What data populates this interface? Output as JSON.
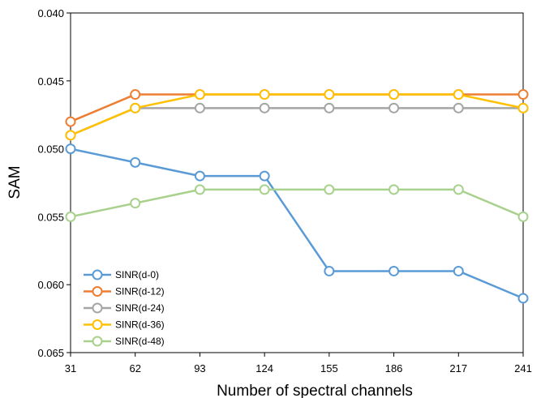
{
  "chart_data": {
    "type": "line",
    "xlabel": "Number of spectral channels",
    "ylabel": "SAM",
    "categories": [
      "31",
      "62",
      "93",
      "124",
      "155",
      "186",
      "217",
      "241"
    ],
    "ylim": [
      0.04,
      0.065
    ],
    "y_inverted": true,
    "yticks": [
      0.04,
      0.045,
      0.05,
      0.055,
      0.06,
      0.065
    ],
    "ytick_labels": [
      "0.040",
      "0.045",
      "0.050",
      "0.055",
      "0.060",
      "0.065"
    ],
    "grid": false,
    "legend_position": "bottom-left",
    "series": [
      {
        "name": "SINR(d-0)",
        "color": "#5B9BD5",
        "values": [
          0.05,
          0.051,
          0.052,
          0.052,
          0.059,
          0.059,
          0.059,
          0.061
        ]
      },
      {
        "name": "SINR(d-12)",
        "color": "#ED7D31",
        "values": [
          0.048,
          0.046,
          0.046,
          0.046,
          0.046,
          0.046,
          0.046,
          0.046
        ]
      },
      {
        "name": "SINR(d-24)",
        "color": "#A5A5A5",
        "values": [
          0.049,
          0.047,
          0.047,
          0.047,
          0.047,
          0.047,
          0.047,
          0.047
        ]
      },
      {
        "name": "SINR(d-36)",
        "color": "#FFC000",
        "values": [
          0.049,
          0.047,
          0.046,
          0.046,
          0.046,
          0.046,
          0.046,
          0.047
        ]
      },
      {
        "name": "SINR(d-48)",
        "color": "#A9D18E",
        "values": [
          0.055,
          0.054,
          0.053,
          0.053,
          0.053,
          0.053,
          0.053,
          0.055
        ]
      }
    ]
  }
}
